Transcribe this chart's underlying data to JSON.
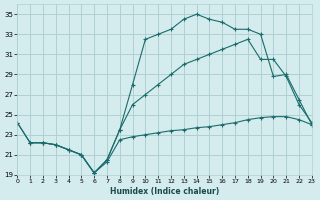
{
  "bg_color": "#d4ecee",
  "grid_color": "#b0d0d4",
  "line_color": "#1a6b6b",
  "xlabel": "Humidex (Indice chaleur)",
  "xlim": [
    0,
    23
  ],
  "ylim": [
    19,
    36
  ],
  "yticks": [
    19,
    21,
    23,
    25,
    27,
    29,
    31,
    33,
    35
  ],
  "xticks": [
    0,
    1,
    2,
    3,
    4,
    5,
    6,
    7,
    8,
    9,
    10,
    11,
    12,
    13,
    14,
    15,
    16,
    17,
    18,
    19,
    20,
    21,
    22,
    23
  ],
  "line1_x": [
    0,
    1,
    2,
    3,
    4,
    5,
    6,
    7,
    8,
    9,
    10,
    11,
    12,
    13,
    14,
    15,
    16,
    17,
    18,
    19,
    20,
    21,
    22,
    23
  ],
  "line1_y": [
    24.2,
    22.2,
    22.2,
    22.0,
    21.5,
    21.0,
    19.2,
    20.5,
    23.5,
    28.0,
    32.5,
    33.0,
    33.5,
    34.5,
    35.0,
    34.5,
    34.2,
    33.5,
    33.5,
    33.0,
    28.8,
    29.0,
    26.5,
    24.0
  ],
  "line2_x": [
    0,
    1,
    2,
    3,
    4,
    5,
    6,
    7,
    8,
    9,
    10,
    11,
    12,
    13,
    14,
    15,
    16,
    17,
    18,
    19,
    20,
    21,
    22,
    23
  ],
  "line2_y": [
    24.2,
    22.2,
    22.2,
    22.0,
    21.5,
    21.0,
    19.2,
    20.5,
    23.5,
    26.0,
    27.0,
    28.0,
    29.0,
    30.0,
    30.5,
    31.0,
    31.5,
    32.0,
    32.5,
    30.5,
    30.5,
    28.8,
    26.0,
    24.2
  ],
  "line3_x": [
    1,
    2,
    3,
    4,
    5,
    6,
    7,
    8,
    9,
    10,
    11,
    12,
    13,
    14,
    15,
    16,
    17,
    18,
    19,
    20,
    21,
    22,
    23
  ],
  "line3_y": [
    22.2,
    22.2,
    22.0,
    21.5,
    21.0,
    19.2,
    20.3,
    22.5,
    22.8,
    23.0,
    23.2,
    23.4,
    23.5,
    23.7,
    23.8,
    24.0,
    24.2,
    24.5,
    24.7,
    24.8,
    24.8,
    24.5,
    24.0
  ]
}
